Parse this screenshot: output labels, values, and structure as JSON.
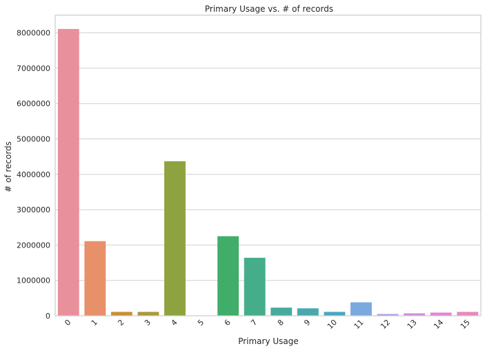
{
  "chart_data": {
    "type": "bar",
    "title": "Primary Usage vs. # of records",
    "xlabel": "Primary Usage",
    "ylabel": "# of records",
    "categories": [
      "0",
      "1",
      "2",
      "3",
      "4",
      "5",
      "6",
      "7",
      "8",
      "9",
      "10",
      "11",
      "12",
      "13",
      "14",
      "15"
    ],
    "values": [
      8110000,
      2110000,
      110000,
      110000,
      4370000,
      5000,
      2250000,
      1640000,
      230000,
      210000,
      110000,
      380000,
      50000,
      70000,
      90000,
      110000
    ],
    "ylim": [
      0,
      8500000
    ],
    "yticks": [
      0,
      1000000,
      2000000,
      3000000,
      4000000,
      5000000,
      6000000,
      7000000,
      8000000
    ],
    "ytick_labels": [
      "0",
      "1000000",
      "2000000",
      "3000000",
      "4000000",
      "5000000",
      "6000000",
      "7000000",
      "8000000"
    ],
    "grid": "horizontal",
    "x_tick_rotation": "45 degrees",
    "colors": [
      "#e8919c",
      "#e8906a",
      "#c99037",
      "#aa9a38",
      "#8ea33f",
      "#5aaa46",
      "#40ad6b",
      "#45ad8a",
      "#47aa9d",
      "#49a8ad",
      "#4aa7c0",
      "#7aa9e0",
      "#aa9ee6",
      "#d18de3",
      "#e486d2",
      "#e78bb8"
    ],
    "grid_color": "#cfcfcf",
    "frame_color": "#cccccc"
  }
}
